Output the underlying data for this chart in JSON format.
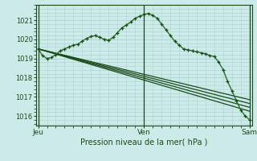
{
  "bg_color": "#cceae8",
  "grid_color": "#aad4d0",
  "line_color": "#2d6e2d",
  "line_color_dark": "#1a4a1a",
  "ylim": [
    1015.5,
    1021.8
  ],
  "yticks": [
    1016,
    1017,
    1018,
    1019,
    1020,
    1021
  ],
  "xtick_labels": [
    "Jeu",
    "Ven",
    "Sam"
  ],
  "xtick_positions": [
    0,
    24,
    48
  ],
  "xlabel": "Pression niveau de la mer( hPa )",
  "series1_x": [
    0,
    1,
    2,
    3,
    4,
    5,
    6,
    7,
    8,
    9,
    10,
    11,
    12,
    13,
    14,
    15,
    16,
    17,
    18,
    19,
    20,
    21,
    22,
    23,
    24,
    25,
    26,
    27,
    28,
    29,
    30,
    31,
    32,
    33,
    34,
    35,
    36,
    37,
    38,
    39,
    40,
    41,
    42,
    43,
    44,
    45,
    46,
    47,
    48
  ],
  "series1_y": [
    1019.5,
    1019.15,
    1019.0,
    1019.05,
    1019.2,
    1019.4,
    1019.5,
    1019.6,
    1019.7,
    1019.75,
    1019.9,
    1020.05,
    1020.15,
    1020.2,
    1020.1,
    1020.0,
    1019.95,
    1020.1,
    1020.35,
    1020.6,
    1020.75,
    1020.9,
    1021.1,
    1021.2,
    1021.3,
    1021.35,
    1021.25,
    1021.1,
    1020.8,
    1020.5,
    1020.2,
    1019.9,
    1019.7,
    1019.5,
    1019.45,
    1019.4,
    1019.35,
    1019.3,
    1019.25,
    1019.15,
    1019.1,
    1018.8,
    1018.4,
    1017.8,
    1017.3,
    1016.8,
    1016.3,
    1016.0,
    1015.8
  ],
  "series2_x": [
    0,
    48
  ],
  "series2_y": [
    1019.5,
    1016.85
  ],
  "series3_x": [
    0,
    48
  ],
  "series3_y": [
    1019.5,
    1016.65
  ],
  "series4_x": [
    0,
    48
  ],
  "series4_y": [
    1019.5,
    1016.45
  ],
  "series5_x": [
    0,
    48
  ],
  "series5_y": [
    1019.5,
    1016.25
  ],
  "vline_positions": [
    0,
    24,
    48
  ]
}
